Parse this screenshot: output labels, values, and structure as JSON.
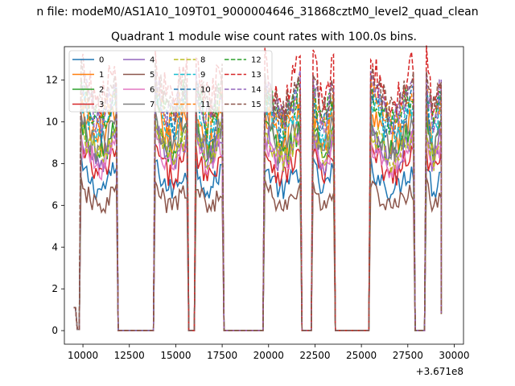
{
  "figure": {
    "suptitle": "n file: modeM0/AS1A10_109T01_9000004646_31868cztM0_level2_quad_clean",
    "offset_label": "+3.671e8"
  },
  "chart_data": {
    "type": "line",
    "title": "Quadrant 1 module wise count rates with 100.0s bins.",
    "xlabel": "",
    "ylabel": "",
    "x_offset": 367100000,
    "xlim": [
      367109000,
      367130500
    ],
    "ylim": [
      -0.65,
      13.6
    ],
    "x_ticks": [
      10000,
      12500,
      15000,
      17500,
      20000,
      22500,
      25000,
      27500,
      30000
    ],
    "x_tick_labels": [
      "10000",
      "12500",
      "15000",
      "17500",
      "20000",
      "22500",
      "25000",
      "27500",
      "30000"
    ],
    "y_ticks": [
      0,
      2,
      4,
      6,
      8,
      10,
      12
    ],
    "y_tick_labels": [
      "0",
      "2",
      "4",
      "6",
      "8",
      "10",
      "12"
    ],
    "grid": false,
    "legend": {
      "placement": "upper-left",
      "columns": 4
    },
    "segments_on": [
      [
        367109900,
        367111850
      ],
      [
        367113900,
        367115600
      ],
      [
        367116100,
        367117500
      ],
      [
        367119800,
        367121700
      ],
      [
        367122400,
        367123500
      ],
      [
        367125500,
        367127800
      ],
      [
        367128500,
        367129300
      ]
    ],
    "series": [
      {
        "name": "0",
        "level": 7.2,
        "color": "#1f77b4",
        "dash": "solid"
      },
      {
        "name": "1",
        "level": 9.6,
        "color": "#ff7f0e",
        "dash": "solid"
      },
      {
        "name": "2",
        "level": 9.0,
        "color": "#2ca02c",
        "dash": "solid"
      },
      {
        "name": "3",
        "level": 7.9,
        "color": "#d62728",
        "dash": "solid"
      },
      {
        "name": "4",
        "level": 8.7,
        "color": "#9467bd",
        "dash": "solid"
      },
      {
        "name": "5",
        "level": 6.3,
        "color": "#8c564b",
        "dash": "solid"
      },
      {
        "name": "6",
        "level": 8.4,
        "color": "#e377c2",
        "dash": "solid"
      },
      {
        "name": "7",
        "level": 9.3,
        "color": "#7f7f7f",
        "dash": "solid"
      },
      {
        "name": "8",
        "level": 8.8,
        "color": "#bcbd22",
        "dash": "dashed"
      },
      {
        "name": "9",
        "level": 10.1,
        "color": "#17becf",
        "dash": "dashed"
      },
      {
        "name": "10",
        "level": 10.4,
        "color": "#1f77b4",
        "dash": "dashed"
      },
      {
        "name": "11",
        "level": 10.6,
        "color": "#ff7f0e",
        "dash": "dashed"
      },
      {
        "name": "12",
        "level": 10.7,
        "color": "#2ca02c",
        "dash": "dashed"
      },
      {
        "name": "13",
        "level": 11.7,
        "color": "#d62728",
        "dash": "dashed"
      },
      {
        "name": "14",
        "level": 10.9,
        "color": "#9467bd",
        "dash": "dashed"
      },
      {
        "name": "15",
        "level": 11.2,
        "color": "#8c564b",
        "dash": "dashed"
      }
    ]
  }
}
